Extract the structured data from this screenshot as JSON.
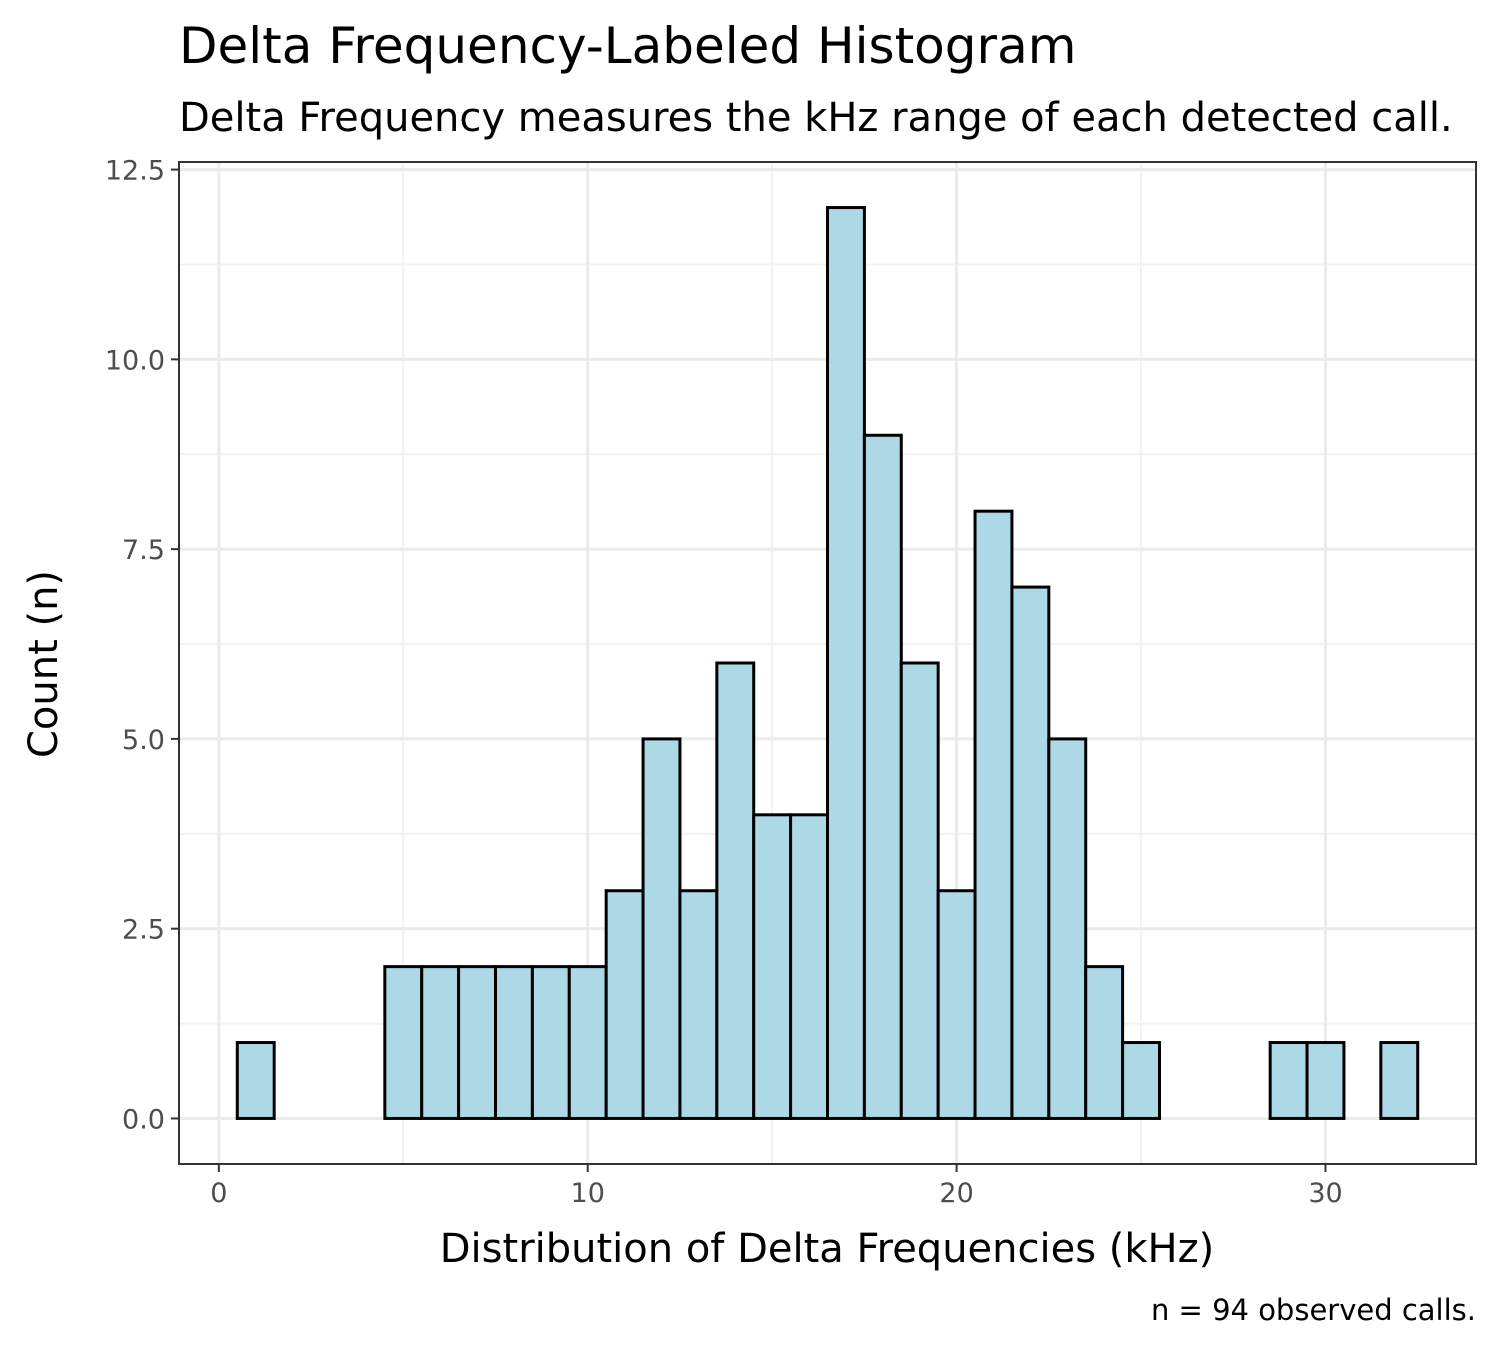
{
  "chart_data": {
    "type": "bar",
    "title": "Delta Frequency-Labeled Histogram",
    "subtitle": "Delta Frequency measures the kHz range of each detected call.",
    "xlabel": "Distribution of Delta Frequencies (kHz)",
    "ylabel": "Count (n)",
    "caption": "n = 94 observed calls.",
    "bin_width": 1,
    "x": [
      1,
      2,
      3,
      4,
      5,
      6,
      7,
      8,
      9,
      10,
      11,
      12,
      13,
      14,
      15,
      16,
      17,
      18,
      19,
      20,
      21,
      22,
      23,
      24,
      25,
      26,
      27,
      28,
      29,
      30,
      31,
      32
    ],
    "values": [
      1,
      0,
      0,
      0,
      2,
      2,
      2,
      2,
      2,
      2,
      3,
      5,
      3,
      6,
      4,
      4,
      12,
      9,
      6,
      3,
      8,
      7,
      5,
      2,
      1,
      0,
      0,
      0,
      1,
      1,
      0,
      1
    ],
    "xlim": [
      -1.08,
      34.08
    ],
    "ylim": [
      -0.6,
      12.6
    ],
    "x_ticks": [
      0,
      10,
      20,
      30
    ],
    "x_tick_labels": [
      "0",
      "10",
      "20",
      "30"
    ],
    "y_ticks": [
      0,
      2.5,
      5,
      7.5,
      10,
      12.5
    ],
    "y_tick_labels": [
      "0.0",
      "2.5",
      "5.0",
      "7.5",
      "10.0",
      "12.5"
    ],
    "grid": true,
    "colors": {
      "bar_fill": "#add8e6",
      "bar_outline": "#000000",
      "grid_major": "#ebebeb",
      "grid_minor": "#f2f2f2",
      "panel_border": "#333333",
      "tick_label": "#4d4d4d"
    }
  }
}
